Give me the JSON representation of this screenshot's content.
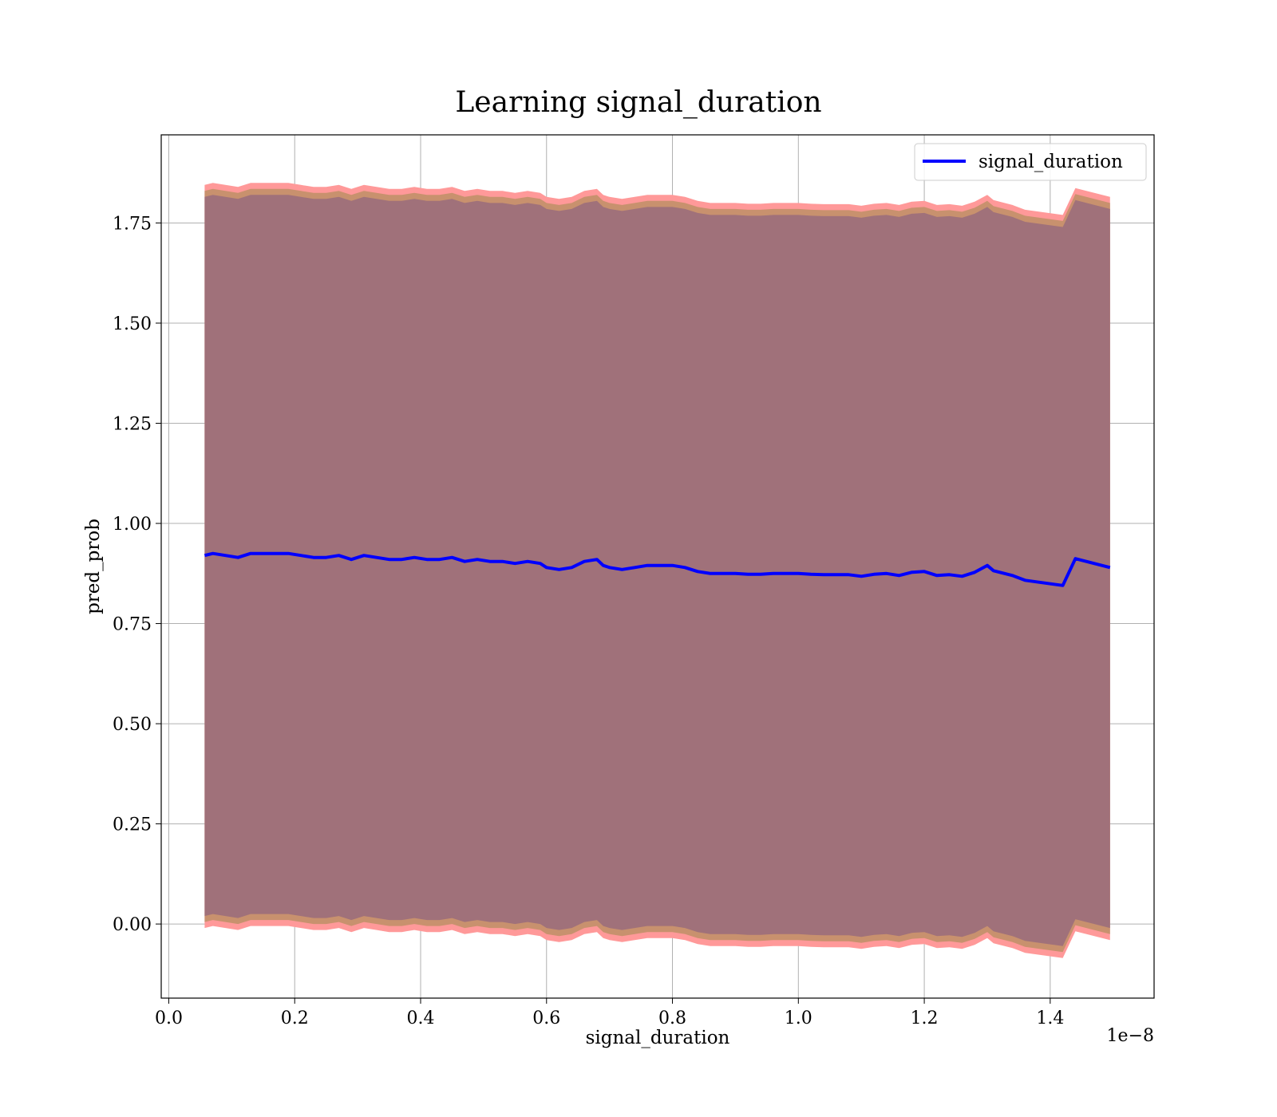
{
  "chart_data": {
    "type": "line",
    "title": "Learning signal_duration",
    "xlabel": "signal_duration",
    "ylabel": "pred_prob",
    "x_offset_label": "1e−8",
    "xlim": [
      -0.012,
      1.565
    ],
    "ylim": [
      -0.185,
      1.97
    ],
    "x_ticks": [
      0.0,
      0.2,
      0.4,
      0.6,
      0.8,
      1.0,
      1.2,
      1.4
    ],
    "x_tick_labels": [
      "0.0",
      "0.2",
      "0.4",
      "0.6",
      "0.8",
      "1.0",
      "1.2",
      "1.4"
    ],
    "y_ticks": [
      0.0,
      0.25,
      0.5,
      0.75,
      1.0,
      1.25,
      1.5,
      1.75
    ],
    "y_tick_labels": [
      "0.00",
      "0.25",
      "0.50",
      "0.75",
      "1.00",
      "1.25",
      "1.50",
      "1.75"
    ],
    "grid": true,
    "legend_position": "top-right",
    "colors": {
      "line": "#0000ff",
      "band_outer": "#ff9999",
      "band_middle": "#c8916e",
      "band_inner": "#a0717a",
      "grid": "#b0b0b0"
    },
    "series": [
      {
        "name": "signal_duration",
        "x": [
          0.057,
          0.07,
          0.09,
          0.11,
          0.13,
          0.15,
          0.17,
          0.19,
          0.21,
          0.23,
          0.25,
          0.27,
          0.29,
          0.31,
          0.33,
          0.35,
          0.37,
          0.39,
          0.41,
          0.43,
          0.45,
          0.47,
          0.49,
          0.51,
          0.53,
          0.55,
          0.57,
          0.59,
          0.6,
          0.62,
          0.64,
          0.66,
          0.68,
          0.69,
          0.7,
          0.72,
          0.74,
          0.76,
          0.78,
          0.8,
          0.82,
          0.84,
          0.86,
          0.88,
          0.9,
          0.92,
          0.94,
          0.96,
          0.98,
          1.0,
          1.02,
          1.04,
          1.06,
          1.08,
          1.1,
          1.12,
          1.14,
          1.16,
          1.18,
          1.2,
          1.22,
          1.24,
          1.26,
          1.28,
          1.3,
          1.31,
          1.34,
          1.36,
          1.42,
          1.44,
          1.495
        ],
        "y": [
          0.92,
          0.925,
          0.92,
          0.915,
          0.925,
          0.925,
          0.925,
          0.925,
          0.92,
          0.915,
          0.915,
          0.92,
          0.91,
          0.92,
          0.915,
          0.91,
          0.91,
          0.915,
          0.91,
          0.91,
          0.915,
          0.905,
          0.91,
          0.905,
          0.905,
          0.9,
          0.905,
          0.9,
          0.89,
          0.885,
          0.89,
          0.905,
          0.91,
          0.895,
          0.89,
          0.885,
          0.89,
          0.895,
          0.895,
          0.895,
          0.89,
          0.88,
          0.875,
          0.875,
          0.875,
          0.873,
          0.873,
          0.875,
          0.875,
          0.875,
          0.873,
          0.872,
          0.872,
          0.872,
          0.868,
          0.873,
          0.875,
          0.87,
          0.878,
          0.88,
          0.87,
          0.872,
          0.868,
          0.878,
          0.895,
          0.882,
          0.87,
          0.858,
          0.845,
          0.912,
          0.89
        ]
      }
    ],
    "bands": {
      "outer": {
        "upper": 1.845,
        "upper_end": 1.82,
        "lower": -0.01,
        "lower_end": -0.04
      },
      "middle": {
        "upper": 1.83,
        "upper_end": 1.805,
        "lower": 0.005,
        "lower_end": -0.025
      },
      "inner": {
        "upper": 1.815,
        "upper_end": 1.79,
        "lower": 0.02,
        "lower_end": -0.01
      }
    }
  }
}
